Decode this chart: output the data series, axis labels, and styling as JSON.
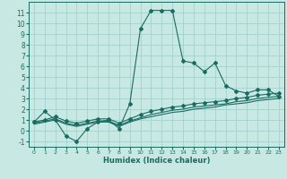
{
  "xlabel": "Humidex (Indice chaleur)",
  "xlim": [
    -0.5,
    23.5
  ],
  "ylim": [
    -1.5,
    12
  ],
  "xticks": [
    0,
    1,
    2,
    3,
    4,
    5,
    6,
    7,
    8,
    9,
    10,
    11,
    12,
    13,
    14,
    15,
    16,
    17,
    18,
    19,
    20,
    21,
    22,
    23
  ],
  "yticks": [
    -1,
    0,
    1,
    2,
    3,
    4,
    5,
    6,
    7,
    8,
    9,
    10,
    11
  ],
  "bg_color": "#c8e8e4",
  "grid_color": "#aad4d0",
  "line_color": "#1a6b60",
  "line1_x": [
    0,
    1,
    2,
    3,
    4,
    5,
    6,
    7,
    8,
    9,
    10,
    11,
    12,
    13,
    14,
    15,
    16,
    17,
    18,
    19,
    20,
    21,
    22,
    23
  ],
  "line1_y": [
    0.8,
    1.8,
    1.0,
    -0.5,
    -1.0,
    0.2,
    0.8,
    1.0,
    0.2,
    2.5,
    9.5,
    11.2,
    11.2,
    11.2,
    6.5,
    6.3,
    5.5,
    6.3,
    4.2,
    3.7,
    3.5,
    3.8,
    3.8,
    3.2
  ],
  "line2_x": [
    0,
    1,
    2,
    3,
    4,
    5,
    6,
    7,
    8,
    9,
    10,
    11,
    12,
    13,
    14,
    15,
    16,
    17,
    18,
    19,
    20,
    21,
    22,
    23
  ],
  "line2_y": [
    0.8,
    1.0,
    1.3,
    0.9,
    0.7,
    0.9,
    1.1,
    1.1,
    0.7,
    1.1,
    1.5,
    1.8,
    2.0,
    2.2,
    2.3,
    2.5,
    2.6,
    2.7,
    2.8,
    3.0,
    3.1,
    3.3,
    3.4,
    3.5
  ],
  "line3_x": [
    0,
    1,
    2,
    3,
    4,
    5,
    6,
    7,
    8,
    9,
    10,
    11,
    12,
    13,
    14,
    15,
    16,
    17,
    18,
    19,
    20,
    21,
    22,
    23
  ],
  "line3_y": [
    0.7,
    0.9,
    1.1,
    0.7,
    0.5,
    0.7,
    0.9,
    0.9,
    0.5,
    0.9,
    1.2,
    1.5,
    1.7,
    1.9,
    2.0,
    2.2,
    2.3,
    2.4,
    2.5,
    2.7,
    2.8,
    3.0,
    3.1,
    3.2
  ],
  "line4_x": [
    0,
    1,
    2,
    3,
    4,
    5,
    6,
    7,
    8,
    9,
    10,
    11,
    12,
    13,
    14,
    15,
    16,
    17,
    18,
    19,
    20,
    21,
    22,
    23
  ],
  "line4_y": [
    0.6,
    0.8,
    1.0,
    0.6,
    0.4,
    0.6,
    0.8,
    0.8,
    0.4,
    0.8,
    1.1,
    1.3,
    1.5,
    1.7,
    1.8,
    2.0,
    2.1,
    2.2,
    2.4,
    2.5,
    2.6,
    2.8,
    2.9,
    3.0
  ]
}
